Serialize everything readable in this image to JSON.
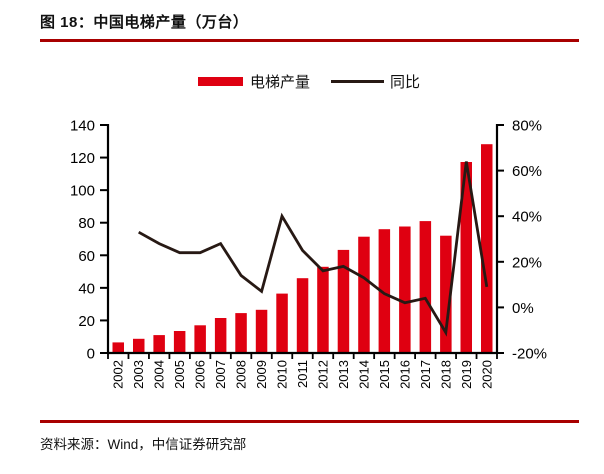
{
  "title": "图 18：中国电梯产量（万台）",
  "legend": {
    "bars_label": "电梯产量",
    "line_label": "同比"
  },
  "source": "资料来源：Wind，中信证券研究部",
  "colors": {
    "bar": "#DF0011",
    "line": "#271914",
    "rule": "#A80000",
    "axis": "#000000"
  },
  "chart_data": {
    "type": "bar",
    "title": "图 18：中国电梯产量（万台）",
    "categories": [
      "2002",
      "2003",
      "2004",
      "2005",
      "2006",
      "2007",
      "2008",
      "2009",
      "2010",
      "2011",
      "2012",
      "2013",
      "2014",
      "2015",
      "2016",
      "2017",
      "2018",
      "2019",
      "2020"
    ],
    "series": [
      {
        "name": "电梯产量",
        "type": "bar",
        "axis": "left",
        "unit": "万台",
        "values": [
          6.5,
          8.7,
          11,
          13.5,
          17,
          21.5,
          24.5,
          26.5,
          36.5,
          45.9,
          52.9,
          63.3,
          71.4,
          76,
          77.7,
          81,
          72,
          117.3,
          128.2
        ]
      },
      {
        "name": "同比",
        "type": "line",
        "axis": "right",
        "unit": "%",
        "values": [
          null,
          33,
          28,
          24,
          24,
          28,
          14,
          7,
          40,
          25,
          16,
          18,
          13,
          6,
          2,
          4,
          -11,
          64,
          9
        ]
      }
    ],
    "left_axis": {
      "min": 0,
      "max": 140,
      "step": 20,
      "tick_labels": [
        "0",
        "20",
        "40",
        "60",
        "80",
        "100",
        "120",
        "140"
      ]
    },
    "right_axis": {
      "min": -20,
      "max": 80,
      "step": 20,
      "tick_labels": [
        "-20%",
        "0%",
        "20%",
        "40%",
        "60%",
        "80%"
      ]
    },
    "grid": false,
    "legend_position": "top"
  }
}
